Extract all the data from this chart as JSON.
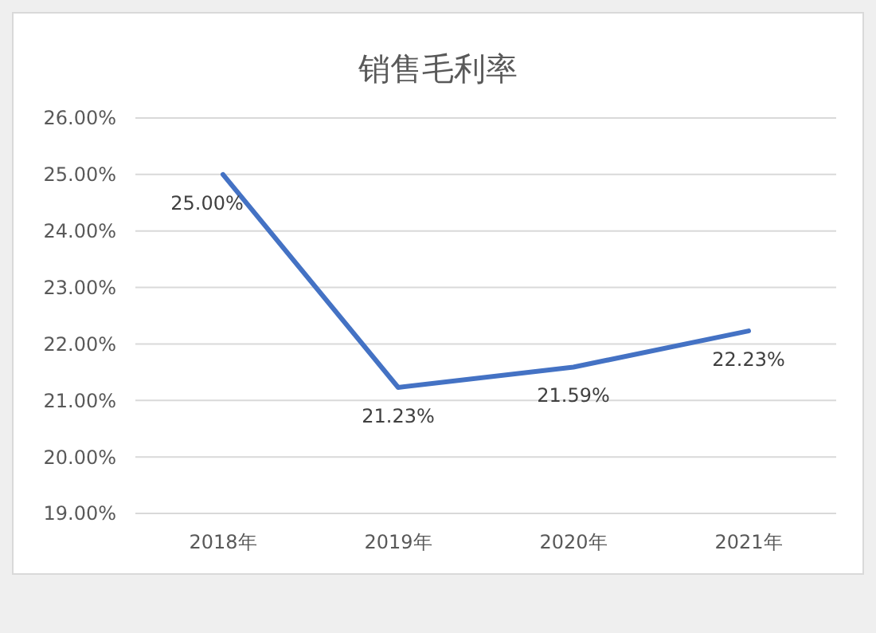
{
  "chart_data": {
    "type": "line",
    "title": "销售毛利率",
    "categories": [
      "2018年",
      "2019年",
      "2020年",
      "2021年"
    ],
    "series": [
      {
        "color": "#4472c4",
        "values": [
          25.0,
          21.23,
          21.59,
          22.23
        ],
        "value_labels": [
          "25.00%",
          "21.23%",
          "21.59%",
          "22.23%"
        ]
      }
    ],
    "ylim": [
      19,
      26
    ],
    "yticks": [
      {
        "value": 19,
        "label": "19.00%"
      },
      {
        "value": 20,
        "label": "20.00%"
      },
      {
        "value": 21,
        "label": "21.00%"
      },
      {
        "value": 22,
        "label": "22.00%"
      },
      {
        "value": 23,
        "label": "23.00%"
      },
      {
        "value": 24,
        "label": "24.00%"
      },
      {
        "value": 25,
        "label": "25.00%"
      },
      {
        "value": 26,
        "label": "26.00%"
      }
    ],
    "grid": "y",
    "marker": "none",
    "line_style": "solid"
  }
}
